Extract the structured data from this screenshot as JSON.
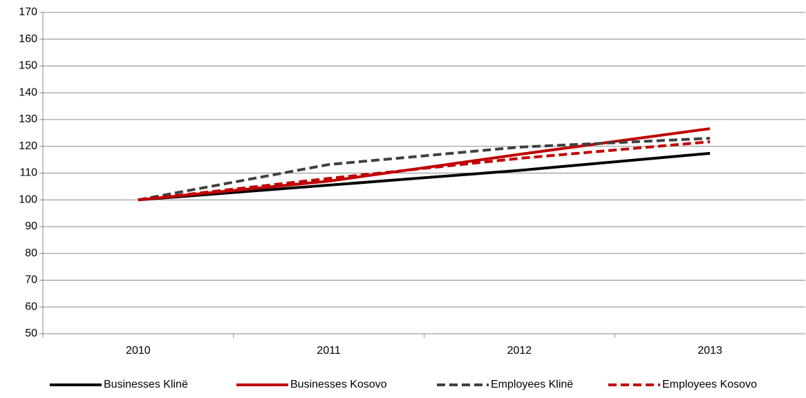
{
  "chart_data": {
    "type": "line",
    "categories": [
      "2010",
      "2011",
      "2012",
      "2013"
    ],
    "series": [
      {
        "name": "Businesses Klinë",
        "color": "#000000",
        "dash": false,
        "values": [
          100,
          105.5,
          111,
          117.4
        ]
      },
      {
        "name": "Businesses Kosovo",
        "color": "#c00000",
        "dash": false,
        "values": [
          100,
          107,
          117,
          126.6
        ]
      },
      {
        "name": "Employees Klinë",
        "color": "#404040",
        "dash": true,
        "values": [
          100,
          113.2,
          119.7,
          123
        ]
      },
      {
        "name": "Employees Kosovo",
        "color": "#c00000",
        "dash": true,
        "values": [
          100,
          108,
          115.5,
          121.7
        ]
      }
    ],
    "ylim": [
      50,
      170
    ],
    "yticks": [
      50,
      60,
      70,
      80,
      90,
      100,
      110,
      120,
      130,
      140,
      150,
      160,
      170
    ],
    "grid": true,
    "legend": "bottom"
  }
}
